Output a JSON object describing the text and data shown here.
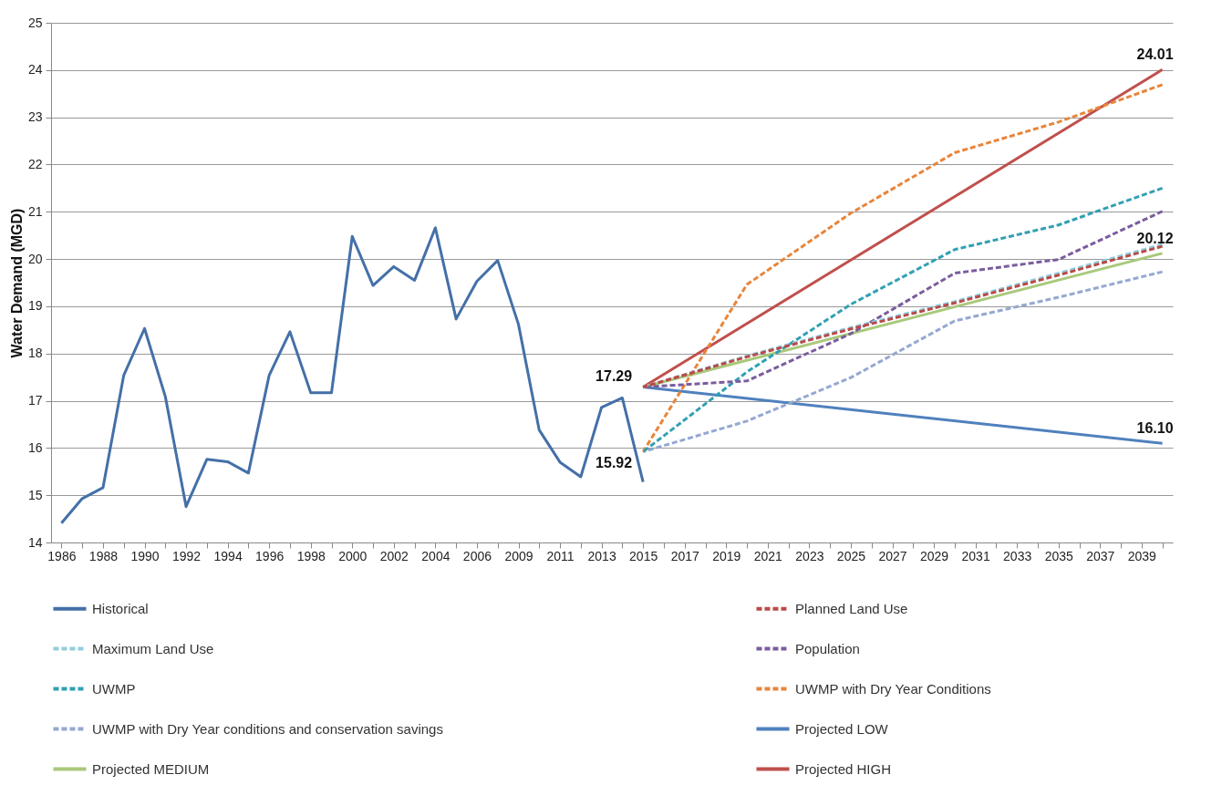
{
  "chart_data": {
    "type": "line",
    "ylabel": "Water Demand (MGD)",
    "categories": [
      "1986",
      null,
      "1988",
      null,
      "1990",
      null,
      "1992",
      null,
      "1994",
      null,
      "1996",
      null,
      "1998",
      null,
      "2000",
      null,
      "2002",
      null,
      "2004",
      null,
      "2006",
      null,
      "2009",
      null,
      "2011",
      null,
      "2013",
      null,
      "2015",
      null,
      "2017",
      null,
      "2019",
      null,
      "2021",
      null,
      "2023",
      null,
      "2025",
      null,
      "2027",
      null,
      "2029",
      null,
      "2031",
      null,
      "2033",
      null,
      "2035",
      null,
      "2037",
      null,
      "2039",
      null
    ],
    "ylim": [
      14,
      25
    ],
    "yticks": [
      14,
      15,
      16,
      17,
      18,
      19,
      20,
      21,
      22,
      23,
      24,
      25
    ],
    "grid": "y",
    "legend": "bottom",
    "marker": "none",
    "series": [
      {
        "name": "Historical",
        "color": "#4470a8",
        "line_style": "solid",
        "values": [
          14.41,
          14.93,
          15.16,
          17.54,
          18.53,
          17.09,
          14.76,
          15.76,
          15.71,
          15.47,
          17.54,
          18.46,
          17.17,
          17.17,
          20.48,
          19.44,
          19.84,
          19.55,
          20.66,
          18.73,
          19.53,
          19.97,
          18.62,
          16.38,
          15.7,
          15.39,
          16.86,
          17.06,
          15.28,
          null,
          null,
          null,
          null,
          null,
          null,
          null,
          null,
          null,
          null,
          null,
          null,
          null,
          null,
          null,
          null,
          null,
          null,
          null,
          null,
          null,
          null,
          null,
          null,
          null
        ]
      },
      {
        "name": "Planned Land Use",
        "color": "#b94a47",
        "line_style": "dashed",
        "values": [
          null,
          null,
          null,
          null,
          null,
          null,
          null,
          null,
          null,
          null,
          null,
          null,
          null,
          null,
          null,
          null,
          null,
          null,
          null,
          null,
          null,
          null,
          null,
          null,
          null,
          null,
          null,
          null,
          17.29,
          null,
          null,
          null,
          null,
          17.93,
          null,
          null,
          null,
          null,
          18.52,
          null,
          null,
          null,
          null,
          19.07,
          null,
          null,
          null,
          null,
          19.66,
          null,
          null,
          null,
          null,
          20.27
        ]
      },
      {
        "name": "Maximum Land Use",
        "color": "#93cddd",
        "line_style": "dashed",
        "values": [
          null,
          null,
          null,
          null,
          null,
          null,
          null,
          null,
          null,
          null,
          null,
          null,
          null,
          null,
          null,
          null,
          null,
          null,
          null,
          null,
          null,
          null,
          null,
          null,
          null,
          null,
          null,
          null,
          17.29,
          null,
          null,
          null,
          null,
          17.95,
          null,
          null,
          null,
          null,
          18.55,
          null,
          null,
          null,
          null,
          19.1,
          null,
          null,
          null,
          null,
          19.7,
          null,
          null,
          null,
          null,
          20.31
        ]
      },
      {
        "name": "Population",
        "color": "#7a5c9e",
        "line_style": "dashed",
        "values": [
          null,
          null,
          null,
          null,
          null,
          null,
          null,
          null,
          null,
          null,
          null,
          null,
          null,
          null,
          null,
          null,
          null,
          null,
          null,
          null,
          null,
          null,
          null,
          null,
          null,
          null,
          null,
          null,
          17.29,
          null,
          null,
          null,
          null,
          17.42,
          null,
          null,
          null,
          null,
          18.42,
          null,
          null,
          null,
          null,
          19.7,
          null,
          null,
          null,
          null,
          19.99,
          null,
          null,
          null,
          null,
          21.01
        ]
      },
      {
        "name": "UWMP",
        "color": "#31a0b2",
        "line_style": "dashed",
        "values": [
          null,
          null,
          null,
          null,
          null,
          null,
          null,
          null,
          null,
          null,
          null,
          null,
          null,
          null,
          null,
          null,
          null,
          null,
          null,
          null,
          null,
          null,
          null,
          null,
          null,
          null,
          null,
          null,
          15.92,
          null,
          null,
          null,
          null,
          17.61,
          null,
          null,
          null,
          null,
          19.04,
          null,
          null,
          null,
          null,
          20.2,
          null,
          null,
          null,
          null,
          20.72,
          null,
          null,
          null,
          null,
          21.5
        ],
        "value_labels": [
          null,
          null,
          null,
          null,
          null,
          null,
          null,
          null,
          null,
          null,
          null,
          null,
          null,
          null,
          null,
          null,
          null,
          null,
          null,
          null,
          null,
          null,
          null,
          null,
          null,
          null,
          null,
          null,
          "15.92",
          null,
          null,
          null,
          null,
          null,
          null,
          null,
          null,
          null,
          null,
          null,
          null,
          null,
          null,
          null,
          null,
          null,
          null,
          null,
          null,
          null,
          null,
          null,
          null,
          null
        ]
      },
      {
        "name": "UWMP with Dry Year Conditions",
        "color": "#e8853a",
        "line_style": "dashed",
        "values": [
          null,
          null,
          null,
          null,
          null,
          null,
          null,
          null,
          null,
          null,
          null,
          null,
          null,
          null,
          null,
          null,
          null,
          null,
          null,
          null,
          null,
          null,
          null,
          null,
          null,
          null,
          null,
          null,
          15.92,
          null,
          null,
          null,
          null,
          19.46,
          null,
          null,
          null,
          null,
          20.97,
          null,
          null,
          null,
          null,
          22.25,
          null,
          null,
          null,
          null,
          22.9,
          null,
          null,
          null,
          null,
          23.69
        ]
      },
      {
        "name": "UWMP with Dry Year conditions  and conservation savings",
        "color": "#95a8d2",
        "line_style": "dashed",
        "values": [
          null,
          null,
          null,
          null,
          null,
          null,
          null,
          null,
          null,
          null,
          null,
          null,
          null,
          null,
          null,
          null,
          null,
          null,
          null,
          null,
          null,
          null,
          null,
          null,
          null,
          null,
          null,
          null,
          15.92,
          null,
          null,
          null,
          null,
          16.57,
          null,
          null,
          null,
          null,
          17.49,
          null,
          null,
          null,
          null,
          18.69,
          null,
          null,
          null,
          null,
          19.19,
          null,
          null,
          null,
          null,
          19.73
        ]
      },
      {
        "name": "Projected LOW",
        "color": "#4f81bd",
        "line_style": "solid",
        "values": [
          null,
          null,
          null,
          null,
          null,
          null,
          null,
          null,
          null,
          null,
          null,
          null,
          null,
          null,
          null,
          null,
          null,
          null,
          null,
          null,
          null,
          null,
          null,
          null,
          null,
          null,
          null,
          null,
          17.29,
          null,
          null,
          null,
          null,
          null,
          null,
          null,
          null,
          null,
          null,
          null,
          null,
          null,
          null,
          null,
          null,
          null,
          null,
          null,
          null,
          null,
          null,
          null,
          null,
          16.1
        ],
        "value_labels": [
          null,
          null,
          null,
          null,
          null,
          null,
          null,
          null,
          null,
          null,
          null,
          null,
          null,
          null,
          null,
          null,
          null,
          null,
          null,
          null,
          null,
          null,
          null,
          null,
          null,
          null,
          null,
          null,
          null,
          null,
          null,
          null,
          null,
          null,
          null,
          null,
          null,
          null,
          null,
          null,
          null,
          null,
          null,
          null,
          null,
          null,
          null,
          null,
          null,
          null,
          null,
          null,
          null,
          "16.10"
        ]
      },
      {
        "name": "Projected MEDIUM",
        "color": "#a9c97c",
        "line_style": "solid",
        "values": [
          null,
          null,
          null,
          null,
          null,
          null,
          null,
          null,
          null,
          null,
          null,
          null,
          null,
          null,
          null,
          null,
          null,
          null,
          null,
          null,
          null,
          null,
          null,
          null,
          null,
          null,
          null,
          null,
          17.29,
          null,
          null,
          null,
          null,
          null,
          null,
          null,
          null,
          null,
          null,
          null,
          null,
          null,
          null,
          null,
          null,
          null,
          null,
          null,
          null,
          null,
          null,
          null,
          null,
          20.12
        ],
        "value_labels": [
          null,
          null,
          null,
          null,
          null,
          null,
          null,
          null,
          null,
          null,
          null,
          null,
          null,
          null,
          null,
          null,
          null,
          null,
          null,
          null,
          null,
          null,
          null,
          null,
          null,
          null,
          null,
          null,
          null,
          null,
          null,
          null,
          null,
          null,
          null,
          null,
          null,
          null,
          null,
          null,
          null,
          null,
          null,
          null,
          null,
          null,
          null,
          null,
          null,
          null,
          null,
          null,
          null,
          "20.12"
        ]
      },
      {
        "name": "Projected HIGH",
        "color": "#c0504d",
        "line_style": "solid",
        "values": [
          null,
          null,
          null,
          null,
          null,
          null,
          null,
          null,
          null,
          null,
          null,
          null,
          null,
          null,
          null,
          null,
          null,
          null,
          null,
          null,
          null,
          null,
          null,
          null,
          null,
          null,
          null,
          null,
          17.29,
          null,
          null,
          null,
          null,
          null,
          null,
          null,
          null,
          null,
          null,
          null,
          null,
          null,
          null,
          null,
          null,
          null,
          null,
          null,
          null,
          null,
          null,
          null,
          null,
          24.01
        ],
        "value_labels": [
          null,
          null,
          null,
          null,
          null,
          null,
          null,
          null,
          null,
          null,
          null,
          null,
          null,
          null,
          null,
          null,
          null,
          null,
          null,
          null,
          null,
          null,
          null,
          null,
          null,
          null,
          null,
          null,
          "17.29",
          null,
          null,
          null,
          null,
          null,
          null,
          null,
          null,
          null,
          null,
          null,
          null,
          null,
          null,
          null,
          null,
          null,
          null,
          null,
          null,
          null,
          null,
          null,
          null,
          "24.01"
        ]
      }
    ]
  }
}
